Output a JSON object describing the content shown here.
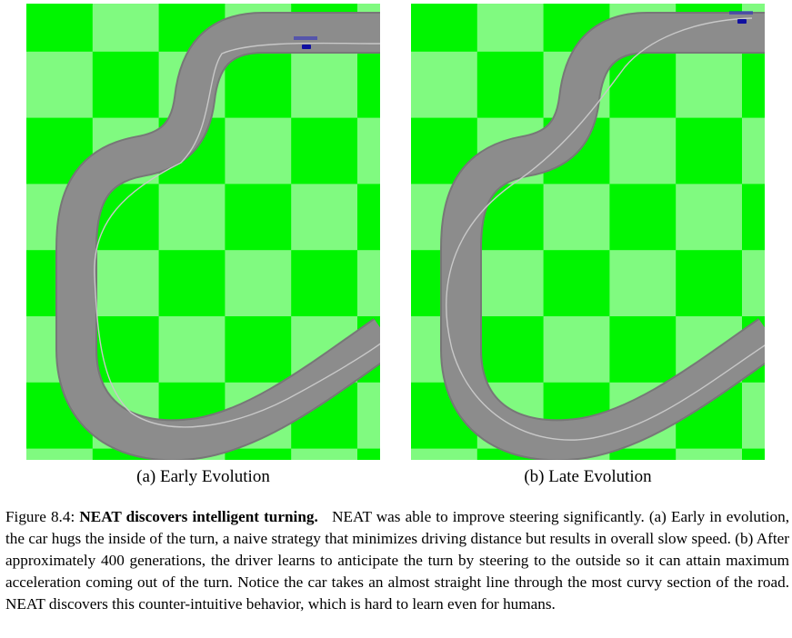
{
  "figure": {
    "panels": [
      {
        "id": "a",
        "caption": "(a) Early Evolution",
        "line": "inside",
        "colors": {
          "light": "#80fa80",
          "dark": "#00f500",
          "road": "#8c8c8c",
          "line": "#c8c8c8",
          "car": "#1010a0"
        }
      },
      {
        "id": "b",
        "caption": "(b) Late Evolution",
        "line": "outside",
        "colors": {
          "light": "#80fa80",
          "dark": "#00f500",
          "road": "#8c8c8c",
          "line": "#c8c8c8",
          "car": "#1010a0"
        }
      }
    ],
    "caption": {
      "label": "Figure 8.4:",
      "title": "NEAT discovers intelligent turning.",
      "text": "NEAT was able to improve steering significantly. (a) Early in evolution, the car hugs the inside of the turn, a naive strategy that minimizes driving distance but results in overall slow speed. (b) After approximately 400 generations, the driver learns to anticipate the turn by steering to the outside so it can attain maximum acceleration coming out of the turn. Notice the car takes an almost straight line through the most curvy section of the road. NEAT discovers this counter-intuitive behavior, which is hard to learn even for humans."
    }
  }
}
